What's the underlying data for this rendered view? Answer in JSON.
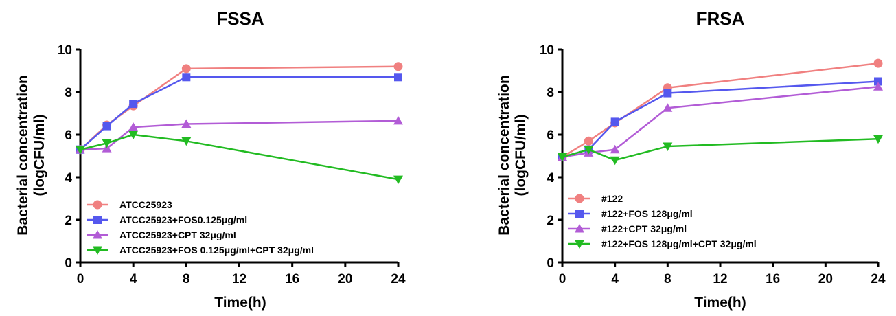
{
  "colors": {
    "series": [
      "#f08080",
      "#5558ee",
      "#b25cd6",
      "#22bb22"
    ]
  },
  "markers": [
    "circle",
    "square",
    "triangle-up",
    "triangle-down"
  ],
  "chart_data": [
    {
      "type": "line",
      "title": "FSSA",
      "xlabel": "Time(h)",
      "ylabel_lines": [
        "Bacterial concentration",
        "(logCFU/ml)"
      ],
      "xlim": [
        0,
        24
      ],
      "ylim": [
        0,
        10
      ],
      "xticks": [
        0,
        4,
        8,
        12,
        16,
        20,
        24
      ],
      "yticks": [
        0,
        2,
        4,
        6,
        8,
        10
      ],
      "grid": false,
      "legend_position": "bottom-left",
      "x": [
        0,
        2,
        4,
        8,
        24
      ],
      "series": [
        {
          "name": "ATCC25923",
          "values": [
            5.3,
            6.45,
            7.35,
            9.1,
            9.2
          ]
        },
        {
          "name": "ATCC25923+FOS0.125μg/ml",
          "values": [
            5.3,
            6.4,
            7.45,
            8.7,
            8.7
          ]
        },
        {
          "name": "ATCC25923+CPT 32μg/ml",
          "values": [
            5.3,
            5.35,
            6.35,
            6.5,
            6.65
          ]
        },
        {
          "name": "ATCC25923+FOS 0.125μg/ml+CPT 32μg/ml",
          "values": [
            5.3,
            5.6,
            6.0,
            5.7,
            3.9
          ]
        }
      ]
    },
    {
      "type": "line",
      "title": "FRSA",
      "xlabel": "Time(h)",
      "ylabel_lines": [
        "Bacterial concentration",
        "(logCFU/ml)"
      ],
      "xlim": [
        0,
        24
      ],
      "ylim": [
        0,
        10
      ],
      "xticks": [
        0,
        4,
        8,
        12,
        16,
        20,
        24
      ],
      "yticks": [
        0,
        2,
        4,
        6,
        8,
        10
      ],
      "grid": false,
      "legend_position": "bottom-left",
      "x": [
        0,
        2,
        4,
        8,
        24
      ],
      "series": [
        {
          "name": "#122",
          "values": [
            4.95,
            5.7,
            6.55,
            8.2,
            9.35
          ]
        },
        {
          "name": "#122+FOS 128μg/ml",
          "values": [
            4.95,
            5.3,
            6.6,
            7.95,
            8.5
          ]
        },
        {
          "name": "#122+CPT 32μg/ml",
          "values": [
            4.95,
            5.15,
            5.3,
            7.25,
            8.25
          ]
        },
        {
          "name": "#122+FOS 128μg/ml+CPT 32μg/ml",
          "values": [
            4.95,
            5.3,
            4.8,
            5.45,
            5.8
          ]
        }
      ]
    }
  ]
}
